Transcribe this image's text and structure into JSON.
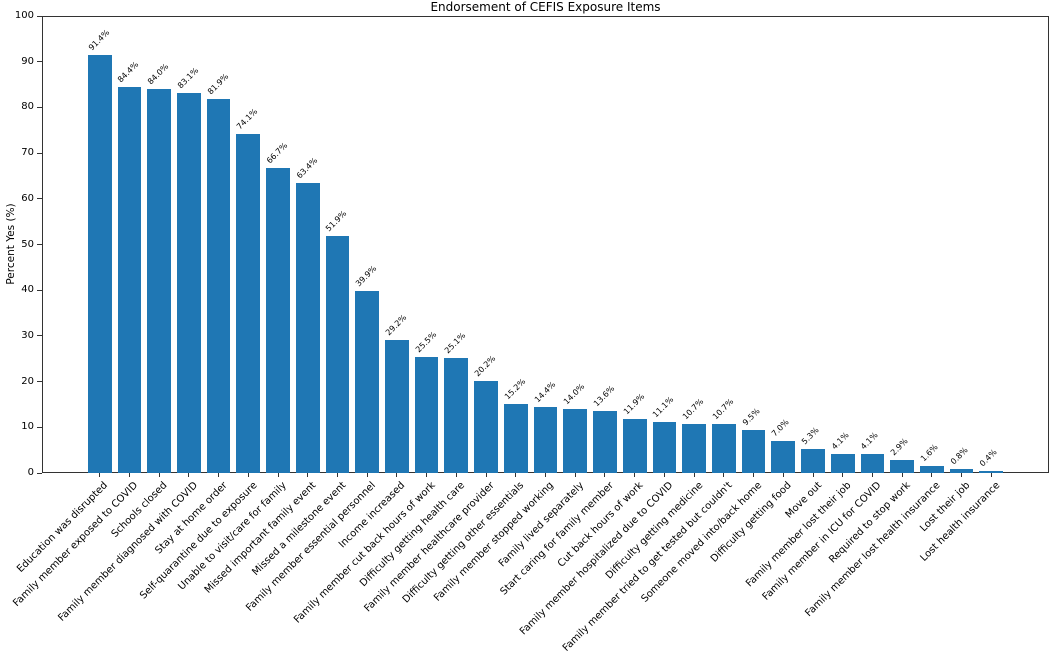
{
  "chart_data": {
    "type": "bar",
    "title": "Endorsement of CEFIS Exposure Items",
    "xlabel": "",
    "ylabel": "Percent Yes (%)",
    "ylim": [
      0,
      100
    ],
    "yticks": [
      0,
      10,
      20,
      30,
      40,
      50,
      60,
      70,
      80,
      90,
      100
    ],
    "grid": false,
    "legend_position": "none",
    "bar_color": "#1f77b4",
    "categories": [
      "Education was disrupted",
      "Family member exposed to COVID",
      "Schools closed",
      "Family member diagnosed with COVID",
      "Stay at home order",
      "Self-quarantine due to exposure",
      "Unable to visit/care for family",
      "Missed important family event",
      "Missed a milestone event",
      "Family member essential personnel",
      "Income increased",
      "Family member cut back hours of work",
      "Difficulty getting health care",
      "Family member healthcare provider",
      "Difficulty getting other essentials",
      "Family member stopped working",
      "Family lived separately",
      "Start caring for family member",
      "Cut back hours of work",
      "Family member hospitalized due to COVID",
      "Difficulty getting medicine",
      "Family member tried to get tested but couldn't",
      "Someone moved into/back home",
      "Difficulty getting food",
      "Move out",
      "Family member lost their job",
      "Family member in ICU for COVID",
      "Required to stop work",
      "Family member lost health insurance",
      "Lost their job",
      "Lost health insurance"
    ],
    "values": [
      91.4,
      84.4,
      84.0,
      83.1,
      81.9,
      74.1,
      66.7,
      63.4,
      51.9,
      39.9,
      29.2,
      25.5,
      25.1,
      20.2,
      15.2,
      14.4,
      14.0,
      13.6,
      11.9,
      11.1,
      10.7,
      10.7,
      9.5,
      7.0,
      5.3,
      4.1,
      4.1,
      2.9,
      1.6,
      0.8,
      0.4
    ],
    "value_labels": [
      "91.4%",
      "84.4%",
      "84.0%",
      "83.1%",
      "81.9%",
      "74.1%",
      "66.7%",
      "63.4%",
      "51.9%",
      "39.9%",
      "29.2%",
      "25.5%",
      "25.1%",
      "20.2%",
      "15.2%",
      "14.4%",
      "14.0%",
      "13.6%",
      "11.9%",
      "11.1%",
      "10.7%",
      "10.7%",
      "9.5%",
      "7.0%",
      "5.3%",
      "4.1%",
      "4.1%",
      "2.9%",
      "1.6%",
      "0.8%",
      "0.4%"
    ]
  }
}
